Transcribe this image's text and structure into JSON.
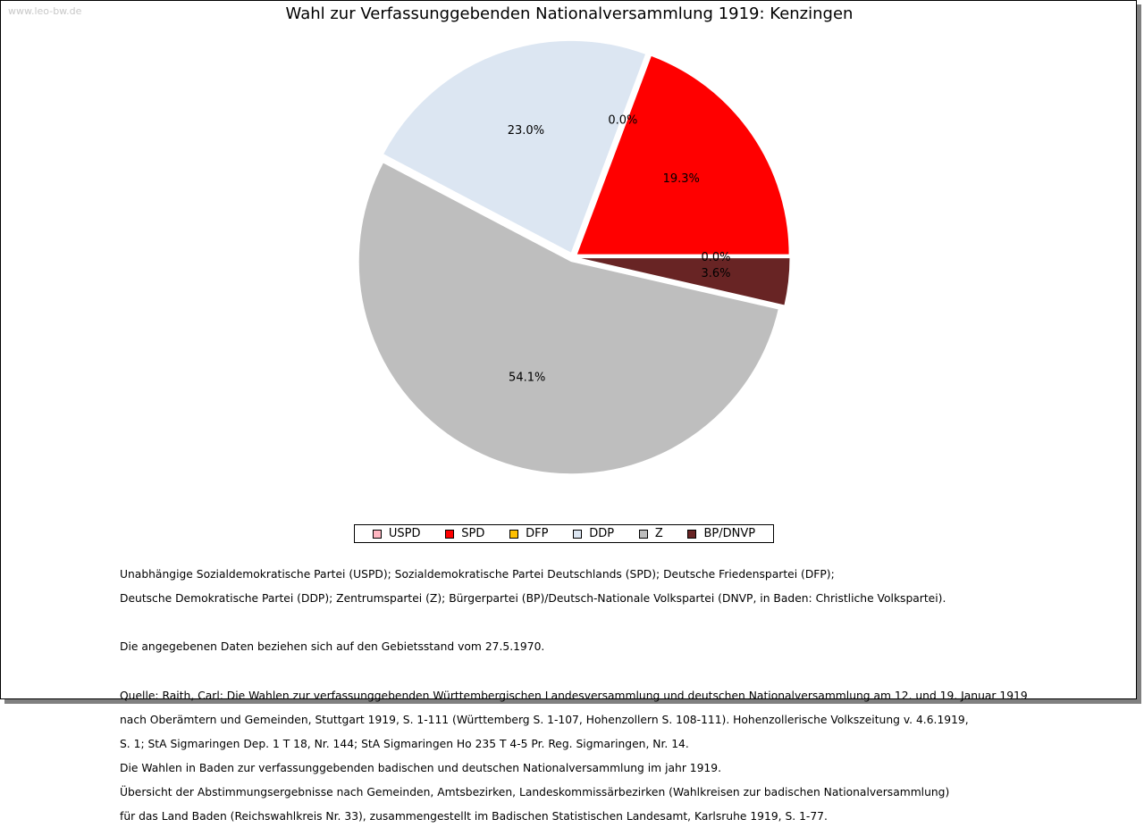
{
  "watermark": "www.leo-bw.de",
  "chart_data": {
    "type": "pie",
    "title": "Wahl zur Verfassunggebenden Nationalversammlung 1919: Kenzingen",
    "legend_position": "bottom",
    "slices": [
      {
        "name": "USPD",
        "value": 0.0,
        "label": "0.0%",
        "color": "#ffb6c1"
      },
      {
        "name": "SPD",
        "value": 19.3,
        "label": "19.3%",
        "color": "#ff0000"
      },
      {
        "name": "DFP",
        "value": 0.0,
        "label": "0.0%",
        "color": "#ffc000"
      },
      {
        "name": "DDP",
        "value": 23.0,
        "label": "23.0%",
        "color": "#dce6f2"
      },
      {
        "name": "Z",
        "value": 54.1,
        "label": "54.1%",
        "color": "#bebebe"
      },
      {
        "name": "BP/DNVP",
        "value": 3.6,
        "label": "3.6%",
        "color": "#682424"
      }
    ]
  },
  "notes": {
    "parties_line1": "Unabhängige Sozialdemokratische Partei (USPD); Sozialdemokratische Partei Deutschlands (SPD); Deutsche Friedenspartei (DFP);",
    "parties_line2": "Deutsche Demokratische Partei (DDP); Zentrumspartei (Z); Bürgerpartei (BP)/Deutsch-Nationale Volkspartei (DNVP, in Baden: Christliche Volkspartei).",
    "territory": "Die angegebenen Daten beziehen sich auf den Gebietsstand vom 27.5.1970.",
    "source_1": "Quelle: Raith, Carl: Die Wahlen zur verfassunggebenden Württembergischen Landesversammlung und deutschen Nationalversammlung am 12. und 19. Januar 1919",
    "source_2": "nach Oberämtern und Gemeinden, Stuttgart 1919, S. 1-111 (Württemberg S. 1-107, Hohenzollern S. 108-111). Hohenzollerische Volkszeitung v. 4.6.1919,",
    "source_3": "S. 1; StA Sigmaringen Dep. 1 T 18, Nr. 144; StA Sigmaringen Ho 235 T 4-5 Pr. Reg. Sigmaringen, Nr. 14.",
    "source_4": "Die Wahlen in Baden zur verfassunggebenden badischen und deutschen Nationalversammlung im jahr 1919.",
    "source_5": "Übersicht der Abstimmungsergebnisse nach Gemeinden, Amtsbezirken, Landeskommissärbezirken (Wahlkreisen zur badischen Nationalversammlung)",
    "source_6": "für das Land Baden (Reichswahlkreis Nr. 33), zusammengestellt im Badischen Statistischen Landesamt, Karlsruhe 1919, S. 1-77."
  }
}
